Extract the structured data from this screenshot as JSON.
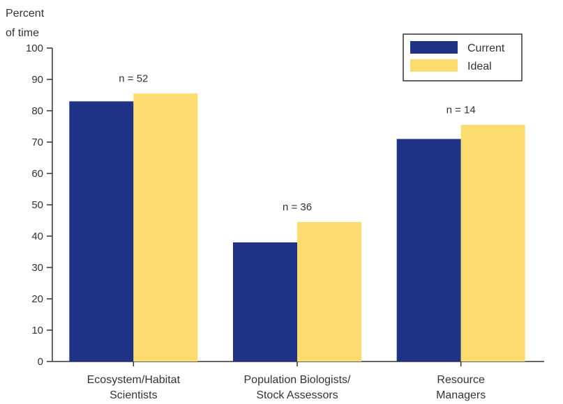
{
  "chart_data": {
    "type": "bar",
    "ylabel": [
      "Percent",
      "of time"
    ],
    "ylim": [
      0,
      100
    ],
    "yticks": [
      0,
      10,
      20,
      30,
      40,
      50,
      60,
      70,
      80,
      90,
      100
    ],
    "categories": [
      [
        "Ecosystem/Habitat",
        "Scientists"
      ],
      [
        "Population Biologists/",
        "Stock Assessors"
      ],
      [
        "Resource",
        "Managers"
      ]
    ],
    "series": [
      {
        "name": "Current",
        "color": "#1f3386",
        "values": [
          83,
          38,
          71
        ]
      },
      {
        "name": "Ideal",
        "color": "#fcdc6f",
        "values": [
          85.5,
          44.5,
          75.5
        ]
      }
    ],
    "annotations": [
      "n = 52",
      "n = 36",
      "n = 14"
    ],
    "legend_position": "top-right",
    "grid": false
  }
}
